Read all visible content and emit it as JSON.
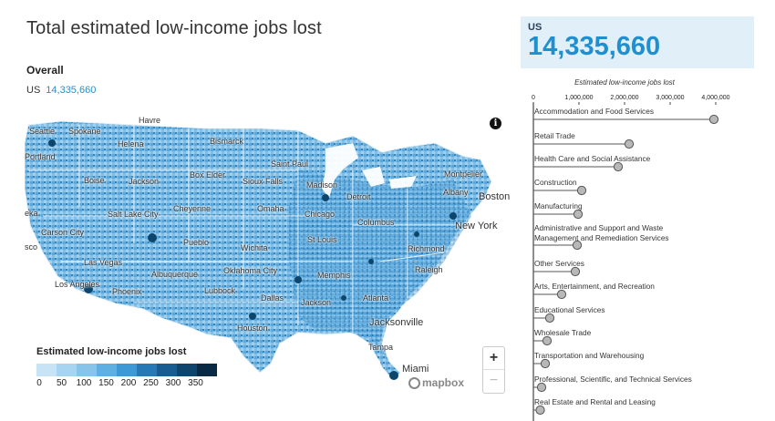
{
  "page": {
    "title": "Total estimated low-income jobs lost",
    "overall_heading": "Overall",
    "overall_region": "US",
    "overall_value": "14,335,660"
  },
  "kpi": {
    "region": "US",
    "value": "14,335,660"
  },
  "map": {
    "info_icon": "info-icon",
    "zoom_in": "+",
    "zoom_out": "−",
    "attribution": "mapbox",
    "city_labels": [
      {
        "name": "Havre"
      },
      {
        "name": "Seattle"
      },
      {
        "name": "Spokane"
      },
      {
        "name": "Portland"
      },
      {
        "name": "Helena"
      },
      {
        "name": "Bismarck"
      },
      {
        "name": "Boise"
      },
      {
        "name": "Jackson"
      },
      {
        "name": "Box Elder"
      },
      {
        "name": "Sioux Falls"
      },
      {
        "name": "Saint Paul"
      },
      {
        "name": "Madison"
      },
      {
        "name": "Detroit"
      },
      {
        "name": "Montpelier"
      },
      {
        "name": "Albany"
      },
      {
        "name": "Boston"
      },
      {
        "name": "Salt Lake City"
      },
      {
        "name": "Cheyenne"
      },
      {
        "name": "Omaha"
      },
      {
        "name": "Chicago"
      },
      {
        "name": "Columbus"
      },
      {
        "name": "New York"
      },
      {
        "name": "Carson City"
      },
      {
        "name": "Pueblo"
      },
      {
        "name": "Wichita"
      },
      {
        "name": "St Louis"
      },
      {
        "name": "Richmond"
      },
      {
        "name": "Las Vegas"
      },
      {
        "name": "Albuquerque"
      },
      {
        "name": "Oklahoma City"
      },
      {
        "name": "Memphis"
      },
      {
        "name": "Raleigh"
      },
      {
        "name": "Los Angeles"
      },
      {
        "name": "Phoenix"
      },
      {
        "name": "Lubbock"
      },
      {
        "name": "Dallas"
      },
      {
        "name": "Jackson"
      },
      {
        "name": "Atlanta"
      },
      {
        "name": "Houston"
      },
      {
        "name": "Jacksonville"
      },
      {
        "name": "Tampa"
      },
      {
        "name": "Miami"
      },
      {
        "name": "eka"
      },
      {
        "name": "sco"
      }
    ]
  },
  "legend": {
    "title": "Estimated low-income jobs lost",
    "colors": [
      "#c6e4f6",
      "#a7d5f1",
      "#86c4ea",
      "#5fb0e2",
      "#3d98d6",
      "#2679b4",
      "#175d91",
      "#0d456d",
      "#082a44"
    ],
    "ticks": [
      "0",
      "50",
      "100",
      "150",
      "200",
      "250",
      "300",
      "350"
    ]
  },
  "chart_data": {
    "type": "bar",
    "title": "Estimated low-income jobs lost",
    "x_ticks": [
      "0",
      "1,000,000",
      "2,000,000",
      "3,000,000",
      "4,000,000"
    ],
    "xlim": [
      0,
      4000000
    ],
    "categories": [
      "Accommodation and Food Services",
      "Retail Trade",
      "Health Care and Social Assistance",
      "Construction",
      "Manufacturing",
      "Administrative and Support and Waste Management and Remediation Services",
      "Other Services",
      "Arts, Entertainment, and Recreation",
      "Educational Services",
      "Wholesale Trade",
      "Transportation and Warehousing",
      "Professional, Scientific, and Technical Services",
      "Real Estate and Rental and Leasing"
    ],
    "label_lines": [
      [
        "Accommodation and Food Services"
      ],
      [
        "Retail Trade"
      ],
      [
        "Health Care and Social Assistance"
      ],
      [
        "Construction"
      ],
      [
        "Manufacturing"
      ],
      [
        "Administrative and Support and Waste",
        "Management and Remediation Services"
      ],
      [
        "Other Services"
      ],
      [
        "Arts, Entertainment, and Recreation"
      ],
      [
        "Educational Services"
      ],
      [
        "Wholesale Trade"
      ],
      [
        "Transportation and Warehousing"
      ],
      [
        "Professional, Scientific, and Technical Services"
      ],
      [
        "Real Estate and Rental and Leasing"
      ]
    ],
    "values": [
      3960000,
      2100000,
      1860000,
      1060000,
      980000,
      960000,
      920000,
      620000,
      360000,
      300000,
      260000,
      180000,
      150000
    ],
    "style": "lollipop",
    "colors": {
      "stem": "#555555",
      "marker_fill": "#b8b8b8",
      "marker_stroke": "#555555",
      "axis": "#444444"
    }
  }
}
